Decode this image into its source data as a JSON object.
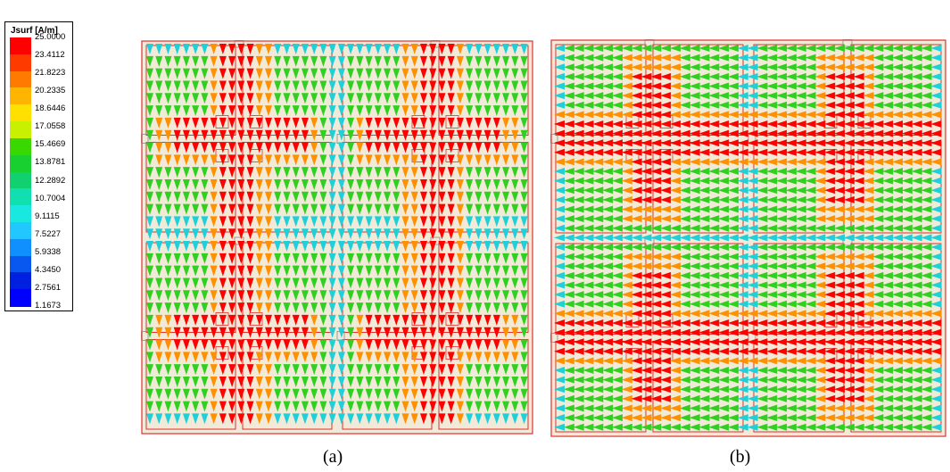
{
  "legend": {
    "title": "Jsurf [A/m]",
    "values": [
      "25.0000",
      "23.4112",
      "21.8223",
      "20.2335",
      "18.6446",
      "17.0558",
      "15.4669",
      "13.8781",
      "12.2892",
      "10.7004",
      "9.1115",
      "7.5227",
      "5.9338",
      "4.3450",
      "2.7561",
      "1.1673"
    ],
    "colors": [
      "#ff0000",
      "#ff3a00",
      "#ff7a00",
      "#ffb400",
      "#ffe000",
      "#c8f000",
      "#38d800",
      "#18d030",
      "#10d070",
      "#10e0b0",
      "#18e8e0",
      "#20c8ff",
      "#1090ff",
      "#0858f0",
      "#0020e0",
      "#0000ff"
    ]
  },
  "captions": {
    "a": "(a)",
    "b": "(b)"
  },
  "colors": {
    "substrate": "#f2ead8",
    "outline": "#e03030",
    "cross": "#ff0000",
    "mid": "#30d020",
    "edge": "#20d0d8"
  },
  "panels": {
    "a": {
      "flow": "vertical"
    },
    "b": {
      "flow": "horizontal"
    }
  }
}
